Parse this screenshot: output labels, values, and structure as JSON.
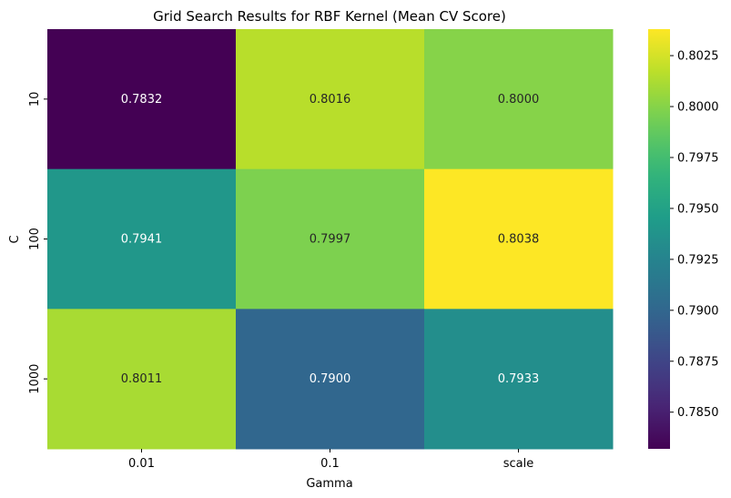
{
  "chart_data": {
    "type": "heatmap",
    "title": "Grid Search Results for RBF Kernel (Mean CV Score)",
    "xlabel": "Gamma",
    "ylabel": "C",
    "x_categories": [
      "0.01",
      "0.1",
      "scale"
    ],
    "y_categories": [
      "10",
      "100",
      "1000"
    ],
    "values": [
      [
        0.7832,
        0.8016,
        0.8
      ],
      [
        0.7941,
        0.7997,
        0.8038
      ],
      [
        0.8011,
        0.79,
        0.7933
      ]
    ],
    "cell_labels": [
      [
        "0.7832",
        "0.8016",
        "0.8000"
      ],
      [
        "0.7941",
        "0.7997",
        "0.8038"
      ],
      [
        "0.8011",
        "0.7900",
        "0.7933"
      ]
    ],
    "colormap": "viridis",
    "colorbar": {
      "vmin": 0.7832,
      "vmax": 0.8038,
      "ticks": [
        0.785,
        0.7875,
        0.79,
        0.7925,
        0.795,
        0.7975,
        0.8,
        0.8025
      ],
      "tick_labels": [
        "0.7850",
        "0.7875",
        "0.7900",
        "0.7925",
        "0.7950",
        "0.7975",
        "0.8000",
        "0.8025"
      ]
    },
    "grid": false,
    "legend": "colorbar-right"
  }
}
